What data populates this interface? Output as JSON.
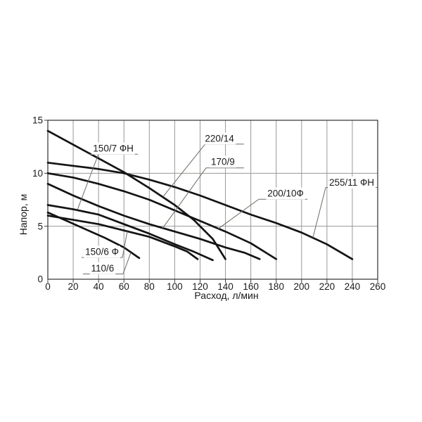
{
  "chart_data": {
    "type": "line",
    "title": "",
    "xlabel": "Расход, л/мин",
    "ylabel": "Напор, м",
    "xlim": [
      0,
      260
    ],
    "ylim": [
      0,
      15
    ],
    "xticks": [
      0,
      20,
      40,
      60,
      80,
      100,
      120,
      140,
      160,
      180,
      200,
      220,
      240,
      260
    ],
    "yticks": [
      0,
      5,
      10,
      15
    ],
    "grid": {
      "vertical_at": [
        20,
        40,
        60,
        80,
        100,
        120,
        140,
        160,
        180,
        200,
        220,
        240
      ],
      "horizontal_at": [
        5,
        10
      ]
    },
    "legend_position": "inline-labels",
    "series": [
      {
        "name": "220/14",
        "points": [
          [
            0,
            14.0
          ],
          [
            20,
            12.7
          ],
          [
            40,
            11.4
          ],
          [
            60,
            10.1
          ],
          [
            80,
            8.6
          ],
          [
            100,
            7.0
          ],
          [
            115,
            5.6
          ],
          [
            130,
            3.8
          ],
          [
            140,
            1.9
          ]
        ]
      },
      {
        "name": "255/11 ФН",
        "points": [
          [
            0,
            11.0
          ],
          [
            20,
            10.7
          ],
          [
            40,
            10.4
          ],
          [
            60,
            10.0
          ],
          [
            80,
            9.4
          ],
          [
            100,
            8.7
          ],
          [
            120,
            7.9
          ],
          [
            140,
            7.0
          ],
          [
            160,
            6.1
          ],
          [
            180,
            5.3
          ],
          [
            200,
            4.4
          ],
          [
            220,
            3.3
          ],
          [
            240,
            1.9
          ]
        ]
      },
      {
        "name": "200/10Ф",
        "points": [
          [
            0,
            10.0
          ],
          [
            20,
            9.6
          ],
          [
            40,
            9.0
          ],
          [
            60,
            8.3
          ],
          [
            80,
            7.5
          ],
          [
            100,
            6.5
          ],
          [
            120,
            5.5
          ],
          [
            140,
            4.5
          ],
          [
            160,
            3.4
          ],
          [
            180,
            1.9
          ]
        ]
      },
      {
        "name": "170/9",
        "points": [
          [
            0,
            9.0
          ],
          [
            20,
            7.9
          ],
          [
            40,
            6.9
          ],
          [
            60,
            6.0
          ],
          [
            80,
            5.2
          ],
          [
            100,
            4.5
          ],
          [
            120,
            3.8
          ],
          [
            140,
            3.0
          ],
          [
            155,
            2.5
          ],
          [
            167,
            1.9
          ]
        ]
      },
      {
        "name": "150/7 ФН",
        "points": [
          [
            0,
            7.0
          ],
          [
            20,
            6.6
          ],
          [
            40,
            6.1
          ],
          [
            60,
            5.2
          ],
          [
            80,
            4.3
          ],
          [
            100,
            3.3
          ],
          [
            115,
            2.6
          ],
          [
            130,
            1.8
          ]
        ]
      },
      {
        "name": "150/6 Ф",
        "points": [
          [
            0,
            6.0
          ],
          [
            20,
            5.6
          ],
          [
            40,
            5.2
          ],
          [
            60,
            4.6
          ],
          [
            80,
            4.0
          ],
          [
            100,
            3.1
          ],
          [
            110,
            2.6
          ],
          [
            118,
            1.9
          ]
        ]
      },
      {
        "name": "110/6",
        "points": [
          [
            0,
            6.3
          ],
          [
            15,
            5.5
          ],
          [
            30,
            4.7
          ],
          [
            45,
            3.9
          ],
          [
            60,
            3.0
          ],
          [
            72,
            2.0
          ]
        ]
      }
    ],
    "annotations": [
      {
        "text": "150/7 ФН",
        "label": [
          51.6,
          12.35
        ],
        "underline": [
          32.2,
          71.0,
          11.8
        ],
        "leader": [
          [
            39.9,
            11.8
          ],
          [
            23.3,
            6.55
          ]
        ]
      },
      {
        "text": "220/14",
        "label": [
          135.3,
          13.3
        ],
        "underline": [
          124.0,
          154.5,
          12.75
        ],
        "leader": [
          [
            124.0,
            12.75
          ],
          [
            90.9,
            7.8
          ]
        ]
      },
      {
        "text": "170/9",
        "label": [
          138.0,
          11.1
        ],
        "underline": [
          124.7,
          154.7,
          10.5
        ],
        "leader": [
          [
            124.7,
            10.5
          ],
          [
            90.4,
            4.8
          ]
        ]
      },
      {
        "text": "200/10Ф",
        "label": [
          187.4,
          8.1
        ],
        "underline": [
          166.3,
          204.6,
          7.55
        ],
        "leader": [
          [
            166.3,
            7.55
          ],
          [
            134.2,
            4.75
          ]
        ]
      },
      {
        "text": "255/11 ФН",
        "label": [
          239.5,
          9.15
        ],
        "underline": [
          219.0,
          260.0,
          8.65
        ],
        "leader": [
          [
            219.0,
            8.65
          ],
          [
            209.0,
            3.95
          ]
        ]
      },
      {
        "text": "150/6 Ф",
        "label": [
          42.7,
          2.6
        ],
        "underline": [
          26.6,
          58.8,
          2.05
        ],
        "leader": [
          [
            58.8,
            2.05
          ],
          [
            62.6,
            4.5
          ]
        ]
      },
      {
        "text": "110/6",
        "label": [
          43.2,
          1.05
        ],
        "underline": [
          27.7,
          59.3,
          0.5
        ],
        "leader": [
          [
            59.3,
            0.5
          ],
          [
            65.4,
            2.5
          ]
        ]
      }
    ],
    "colors": {
      "curve": "#141414",
      "grid": "#989898",
      "frame": "#3f3f3f",
      "leader": "#6f6a60",
      "text": "#1a1a1a",
      "background": "#ffffff"
    }
  }
}
